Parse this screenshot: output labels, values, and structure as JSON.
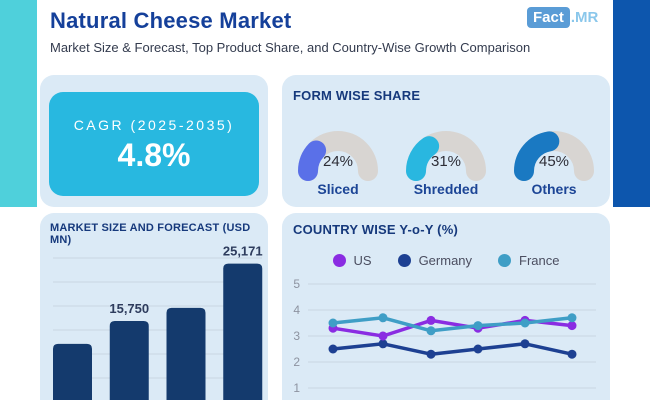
{
  "header": {
    "title": "Natural Cheese Market",
    "subtitle": "Market Size & Forecast, Top Product Share, and Country-Wise Growth Comparison",
    "logo_text": "Fact",
    "logo_suffix": ".MR"
  },
  "cagr_card": {
    "label": "CAGR (2025-2035)",
    "value": "4.8%"
  },
  "form_share": {
    "title": "FORM WISE SHARE",
    "track_color": "#d8d5d2",
    "items": [
      {
        "label": "Sliced",
        "pct": 24,
        "pct_label": "24%",
        "color": "#5a70e8"
      },
      {
        "label": "Shredded",
        "pct": 31,
        "pct_label": "31%",
        "color": "#29b7e0"
      },
      {
        "label": "Others",
        "pct": 45,
        "pct_label": "45%",
        "color": "#1a79c2"
      }
    ]
  },
  "chart_data": [
    {
      "type": "bar",
      "title": "MARKET SIZE AND FORECAST (USD MN)",
      "values": [
        12000,
        15750,
        17900,
        25171
      ],
      "data_labels": [
        "",
        "15,750",
        "",
        "25,171"
      ],
      "bar_color": "#143a6d",
      "grid": true,
      "note": "4 bars rising left to right; x-axis year labels are cropped below the image edge; bars 1 and 3 unlabeled (values estimated from heights)"
    },
    {
      "type": "line",
      "title": "COUNTRY WISE Y-o-Y (%)",
      "x_points": 6,
      "series": [
        {
          "name": "US",
          "color": "#8a2ce2",
          "values": [
            3.3,
            3.0,
            3.6,
            3.3,
            3.6,
            3.4
          ]
        },
        {
          "name": "Germany",
          "color": "#1d4092",
          "values": [
            2.5,
            2.7,
            2.3,
            2.5,
            2.7,
            2.3
          ]
        },
        {
          "name": "France",
          "color": "#3f9ec6",
          "values": [
            3.5,
            3.7,
            3.2,
            3.4,
            3.5,
            3.7
          ]
        }
      ],
      "y_ticks": [
        "5",
        "4",
        "3",
        "2",
        "1"
      ],
      "ylim": [
        1,
        5
      ],
      "legend_position": "top",
      "grid": true,
      "note": "x-axis labels cropped below the image edge"
    }
  ],
  "colors": {
    "accent_teal_strip": "#4fd0db",
    "accent_blue_strip": "#0d56ad",
    "panel_bg": "#dbeaf6",
    "cagr_box": "#28b8e0",
    "heading_navy": "#16397c",
    "title_blue": "#15409a",
    "gridline": "#c9d6e3",
    "bar_label": "#2e3c5d",
    "axis_text": "#8d93a0"
  }
}
